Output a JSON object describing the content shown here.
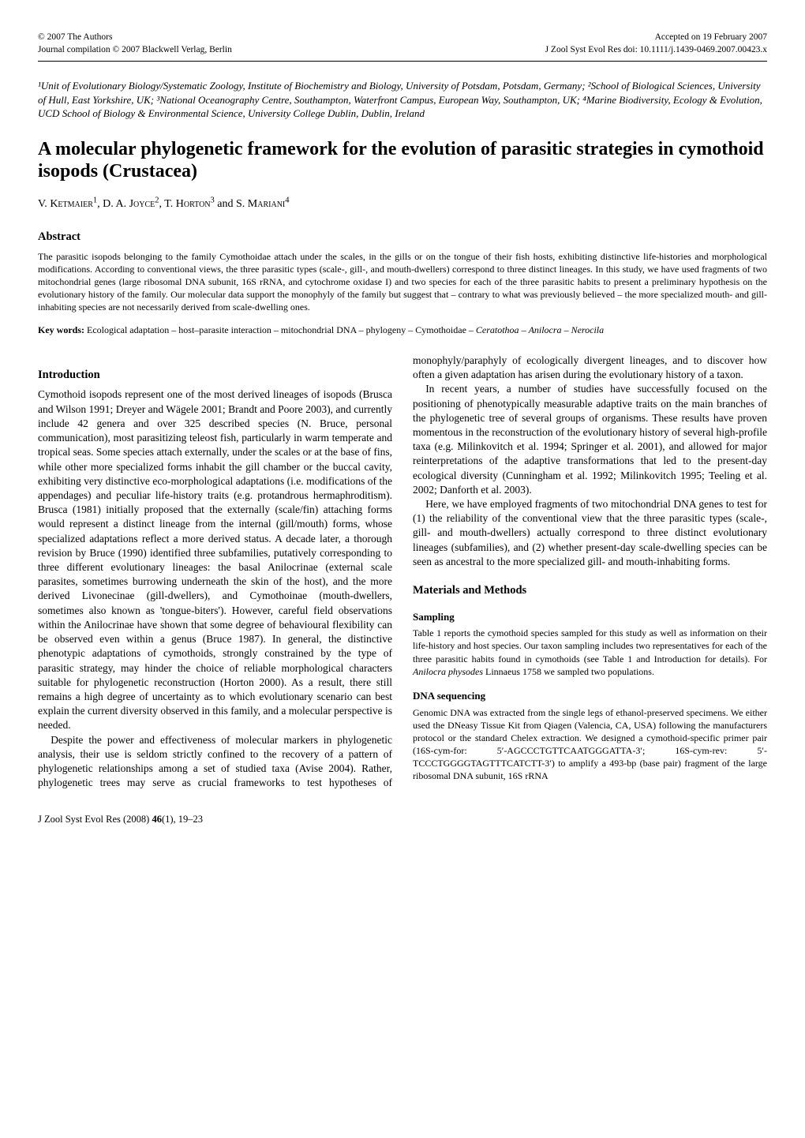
{
  "header": {
    "top_left_line1": "© 2007 The Authors",
    "top_left_line2": "Journal compilation © 2007 Blackwell Verlag, Berlin",
    "top_right_line1": "Accepted on 19 February 2007",
    "top_right_line2": "J Zool Syst Evol Res doi: 10.1111/j.1439-0469.2007.00423.x"
  },
  "affiliations": "¹Unit of Evolutionary Biology/Systematic Zoology, Institute of Biochemistry and Biology, University of Potsdam, Potsdam, Germany; ²School of Biological Sciences, University of Hull, East Yorkshire, UK; ³National Oceanography Centre, Southampton, Waterfront Campus, European Way, Southampton, UK; ⁴Marine Biodiversity, Ecology & Evolution, UCD School of Biology & Environmental Science, University College Dublin, Dublin, Ireland",
  "title": "A molecular phylogenetic framework for the evolution of parasitic strategies in cymothoid isopods (Crustacea)",
  "authors_html": "V. Kᴇᴛᴍᴀɪᴇʀ¹, D. A. Jᴏʏᴄᴇ², T. Hᴏʀᴛᴏɴ³ and S. Mᴀʀɪᴀɴɪ⁴",
  "abstract_heading": "Abstract",
  "abstract_text": "The parasitic isopods belonging to the family Cymothoidae attach under the scales, in the gills or on the tongue of their fish hosts, exhibiting distinctive life-histories and morphological modifications. According to conventional views, the three parasitic types (scale-, gill-, and mouth-dwellers) correspond to three distinct lineages. In this study, we have used fragments of two mitochondrial genes (large ribosomal DNA subunit, 16S rRNA, and cytochrome oxidase I) and two species for each of the three parasitic habits to present a preliminary hypothesis on the evolutionary history of the family. Our molecular data support the monophyly of the family but suggest that – contrary to what was previously believed – the more specialized mouth- and gill-inhabiting species are not necessarily derived from scale-dwelling ones.",
  "keywords_label": "Key words:",
  "keywords_text": " Ecological adaptation – host–parasite interaction – mitochondrial DNA – phylogeny – Cymothoidae – Ceratothoa – Anilocra – Nerocila",
  "intro_heading": "Introduction",
  "intro_p1": "Cymothoid isopods represent one of the most derived lineages of isopods (Brusca and Wilson 1991; Dreyer and Wägele 2001; Brandt and Poore 2003), and currently include 42 genera and over 325 described species (N. Bruce, personal communication), most parasitizing teleost fish, particularly in warm temperate and tropical seas. Some species attach externally, under the scales or at the base of fins, while other more specialized forms inhabit the gill chamber or the buccal cavity, exhibiting very distinctive eco-morphological adaptations (i.e. modifications of the appendages) and peculiar life-history traits (e.g. protandrous hermaphroditism). Brusca (1981) initially proposed that the externally (scale/fin) attaching forms would represent a distinct lineage from the internal (gill/mouth) forms, whose specialized adaptations reflect a more derived status. A decade later, a thorough revision by Bruce (1990) identified three subfamilies, putatively corresponding to three different evolutionary lineages: the basal Anilocrinae (external scale parasites, sometimes burrowing underneath the skin of the host), and the more derived Livonecinae (gill-dwellers), and Cymothoinae (mouth-dwellers, sometimes also known as 'tongue-biters'). However, careful field observations within the Anilocrinae have shown that some degree of behavioural flexibility can be observed even within a genus (Bruce 1987). In general, the distinctive phenotypic adaptations of cymothoids, strongly constrained by the type of parasitic strategy, may hinder the choice of reliable morphological characters suitable for phylogenetic reconstruction (Horton 2000). As a result, there still remains a high degree of uncertainty as to which evolutionary scenario can best explain the current diversity observed in this family, and a molecular perspective is needed.",
  "intro_p2": "Despite the power and effectiveness of molecular markers in phylogenetic analysis, their use is seldom strictly confined to the recovery of a pattern of phylogenetic relationships among a set of studied taxa (Avise 2004). Rather, phylogenetic trees may serve as crucial frameworks to test hypotheses of monophyly/paraphyly of ecologically divergent lineages, and to discover how often a given adaptation has arisen during the evolutionary history of a taxon.",
  "intro_p3": "In recent years, a number of studies have successfully focused on the positioning of phenotypically measurable adaptive traits on the main branches of the phylogenetic tree of several groups of organisms. These results have proven momentous in the reconstruction of the evolutionary history of several high-profile taxa (e.g. Milinkovitch et al. 1994; Springer et al. 2001), and allowed for major reinterpretations of the adaptive transformations that led to the present-day ecological diversity (Cunningham et al. 1992; Milinkovitch 1995; Teeling et al. 2002; Danforth et al. 2003).",
  "intro_p4": "Here, we have employed fragments of two mitochondrial DNA genes to test for (1) the reliability of the conventional view that the three parasitic types (scale-, gill- and mouth-dwellers) actually correspond to three distinct evolutionary lineages (subfamilies), and (2) whether present-day scale-dwelling species can be seen as ancestral to the more specialized gill- and mouth-inhabiting forms.",
  "methods_heading": "Materials and Methods",
  "sampling_heading": "Sampling",
  "sampling_text": "Table 1 reports the cymothoid species sampled for this study as well as information on their life-history and host species. Our taxon sampling includes two representatives for each of the three parasitic habits found in cymothoids (see Table 1 and Introduction for details). For Anilocra physodes Linnaeus 1758 we sampled two populations.",
  "dna_heading": "DNA sequencing",
  "dna_text": "Genomic DNA was extracted from the single legs of ethanol-preserved specimens. We either used the DNeasy Tissue Kit from Qiagen (Valencia, CA, USA) following the manufacturers protocol or the standard Chelex extraction. We designed a cymothoid-specific primer pair (16S-cym-for: 5′-AGCCCTGTTCAATGGGATTA-3′; 16S-cym-rev: 5′-TCCCTGGGGTAGTTTCATCTT-3′) to amplify a 493-bp (base pair) fragment of the large ribosomal DNA subunit, 16S rRNA",
  "footer": "J Zool Syst Evol Res (2008) 46(1), 19–23"
}
